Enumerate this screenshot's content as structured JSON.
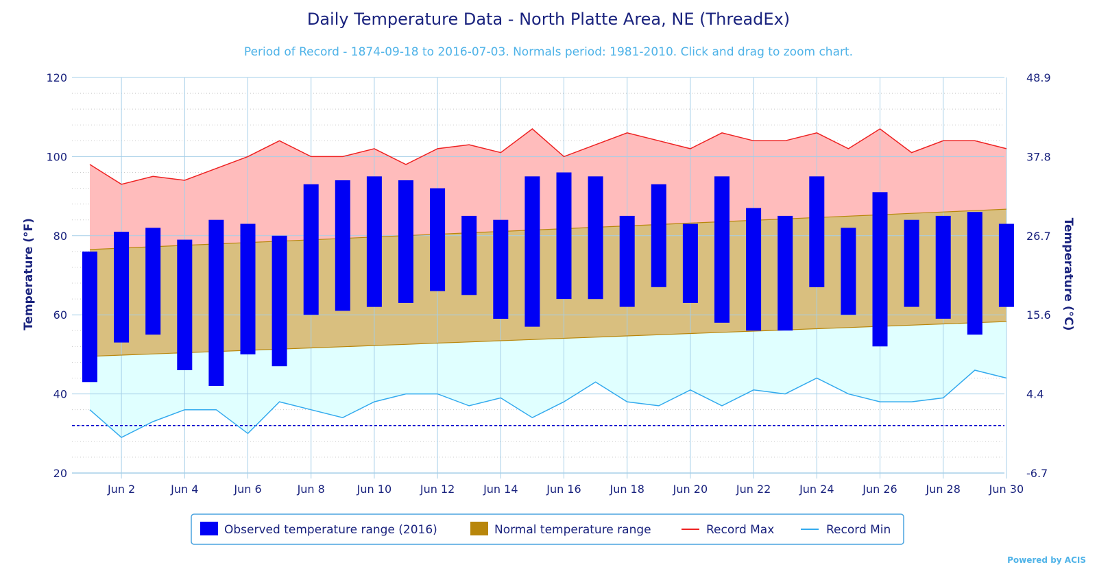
{
  "colors": {
    "observed": "#0000f5",
    "normal_fill": "#d9bf7f",
    "normal_line": "#b8860b",
    "record_max_line": "#ee2222",
    "record_max_fill": "#ffbcbc",
    "record_min_line": "#33aaee",
    "record_min_fill": "#e0ffff",
    "freezing_line": "#0000cc",
    "grid": "#a6cfe8",
    "text": "#1a237e",
    "subtitle": "#4fb3e8"
  },
  "chart_data": {
    "type": "bar",
    "title": "Daily Temperature Data - North Platte Area, NE (ThreadEx)",
    "subtitle": "Period of Record - 1874-09-18 to 2016-07-03. Normals period: 1981-2010. Click and drag to zoom chart.",
    "ylabel": "Temperature (°F)",
    "ylabel_right": "Temperature (°C)",
    "ylim": [
      20,
      120
    ],
    "yticks": [
      "20",
      "40",
      "60",
      "80",
      "100",
      "120"
    ],
    "yticks_right": [
      "-6.7",
      "4.4",
      "15.6",
      "26.7",
      "37.8",
      "48.9"
    ],
    "x": [
      1,
      2,
      3,
      4,
      5,
      6,
      7,
      8,
      9,
      10,
      11,
      12,
      13,
      14,
      15,
      16,
      17,
      18,
      19,
      20,
      21,
      22,
      23,
      24,
      25,
      26,
      27,
      28,
      29,
      30
    ],
    "xticks": [
      {
        "day": 2,
        "label": "Jun 2"
      },
      {
        "day": 4,
        "label": "Jun 4"
      },
      {
        "day": 6,
        "label": "Jun 6"
      },
      {
        "day": 8,
        "label": "Jun 8"
      },
      {
        "day": 10,
        "label": "Jun 10"
      },
      {
        "day": 12,
        "label": "Jun 12"
      },
      {
        "day": 14,
        "label": "Jun 14"
      },
      {
        "day": 16,
        "label": "Jun 16"
      },
      {
        "day": 18,
        "label": "Jun 18"
      },
      {
        "day": 20,
        "label": "Jun 20"
      },
      {
        "day": 22,
        "label": "Jun 22"
      },
      {
        "day": 24,
        "label": "Jun 24"
      },
      {
        "day": 26,
        "label": "Jun 26"
      },
      {
        "day": 28,
        "label": "Jun 28"
      },
      {
        "day": 30,
        "label": "Jun 30"
      }
    ],
    "freezing_line": 32,
    "series": [
      {
        "name": "Observed temperature range (2016)",
        "type": "columnrange",
        "low": [
          43,
          53,
          55,
          46,
          42,
          50,
          47,
          60,
          61,
          62,
          63,
          66,
          65,
          59,
          57,
          64,
          64,
          62,
          67,
          63,
          58,
          56,
          56,
          67,
          60,
          52,
          62,
          59,
          55,
          62
        ],
        "high": [
          76,
          81,
          82,
          79,
          84,
          83,
          80,
          93,
          94,
          95,
          94,
          92,
          85,
          84,
          95,
          96,
          95,
          85,
          93,
          83,
          95,
          87,
          85,
          95,
          82,
          91,
          84,
          85,
          86,
          83
        ]
      },
      {
        "name": "Normal temperature range",
        "type": "arearange",
        "low_start": 49.5,
        "low_end": 58.3,
        "high_start": 76.5,
        "high_end": 86.7
      },
      {
        "name": "Record Max",
        "type": "line",
        "values": [
          98,
          93,
          95,
          94,
          97,
          100,
          104,
          100,
          100,
          102,
          98,
          102,
          103,
          101,
          107,
          100,
          103,
          106,
          104,
          102,
          106,
          104,
          104,
          106,
          102,
          107,
          101,
          104,
          104,
          102
        ]
      },
      {
        "name": "Record Min",
        "type": "line",
        "values": [
          36,
          29,
          33,
          36,
          36,
          30,
          38,
          36,
          34,
          38,
          40,
          40,
          37,
          39,
          34,
          38,
          43,
          38,
          37,
          41,
          37,
          41,
          40,
          44,
          40,
          38,
          38,
          39,
          46,
          44
        ]
      }
    ],
    "grid": true,
    "legend_position": "bottom-center"
  },
  "credit": "Powered by ACIS"
}
